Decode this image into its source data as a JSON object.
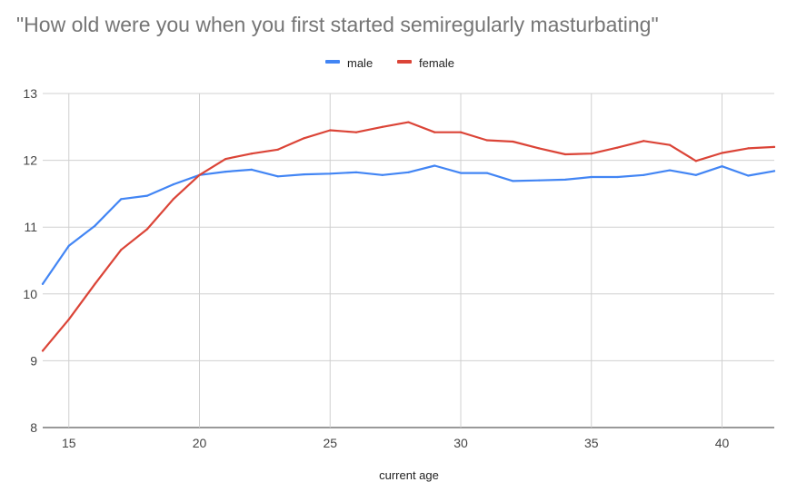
{
  "chart_data": {
    "type": "line",
    "title": "\"How old were you when you first started semiregularly masturbating\"",
    "xlabel": "current age",
    "ylabel": "",
    "xlim": [
      14,
      42
    ],
    "ylim": [
      8,
      13
    ],
    "x_ticks": [
      15,
      20,
      25,
      30,
      35,
      40
    ],
    "y_ticks": [
      8,
      9,
      10,
      11,
      12,
      13
    ],
    "grid": true,
    "legend_position": "top",
    "x": [
      14,
      15,
      16,
      17,
      18,
      19,
      20,
      21,
      22,
      23,
      24,
      25,
      26,
      27,
      28,
      29,
      30,
      31,
      32,
      33,
      34,
      35,
      36,
      37,
      38,
      39,
      40,
      41,
      42
    ],
    "series": [
      {
        "name": "male",
        "color": "#4285f4",
        "values": [
          10.15,
          10.72,
          11.02,
          11.42,
          11.47,
          11.64,
          11.78,
          11.83,
          11.86,
          11.76,
          11.79,
          11.8,
          11.82,
          11.78,
          11.82,
          11.92,
          11.81,
          11.81,
          11.69,
          11.7,
          11.71,
          11.75,
          11.75,
          11.78,
          11.85,
          11.78,
          11.91,
          11.77,
          11.84
        ]
      },
      {
        "name": "female",
        "color": "#db4437",
        "values": [
          9.15,
          9.62,
          10.15,
          10.66,
          10.97,
          11.42,
          11.78,
          12.02,
          12.1,
          12.16,
          12.33,
          12.45,
          12.42,
          12.5,
          12.57,
          12.42,
          12.42,
          12.3,
          12.28,
          12.18,
          12.09,
          12.1,
          12.19,
          12.29,
          12.23,
          11.99,
          12.11,
          12.18,
          12.2
        ]
      }
    ]
  }
}
